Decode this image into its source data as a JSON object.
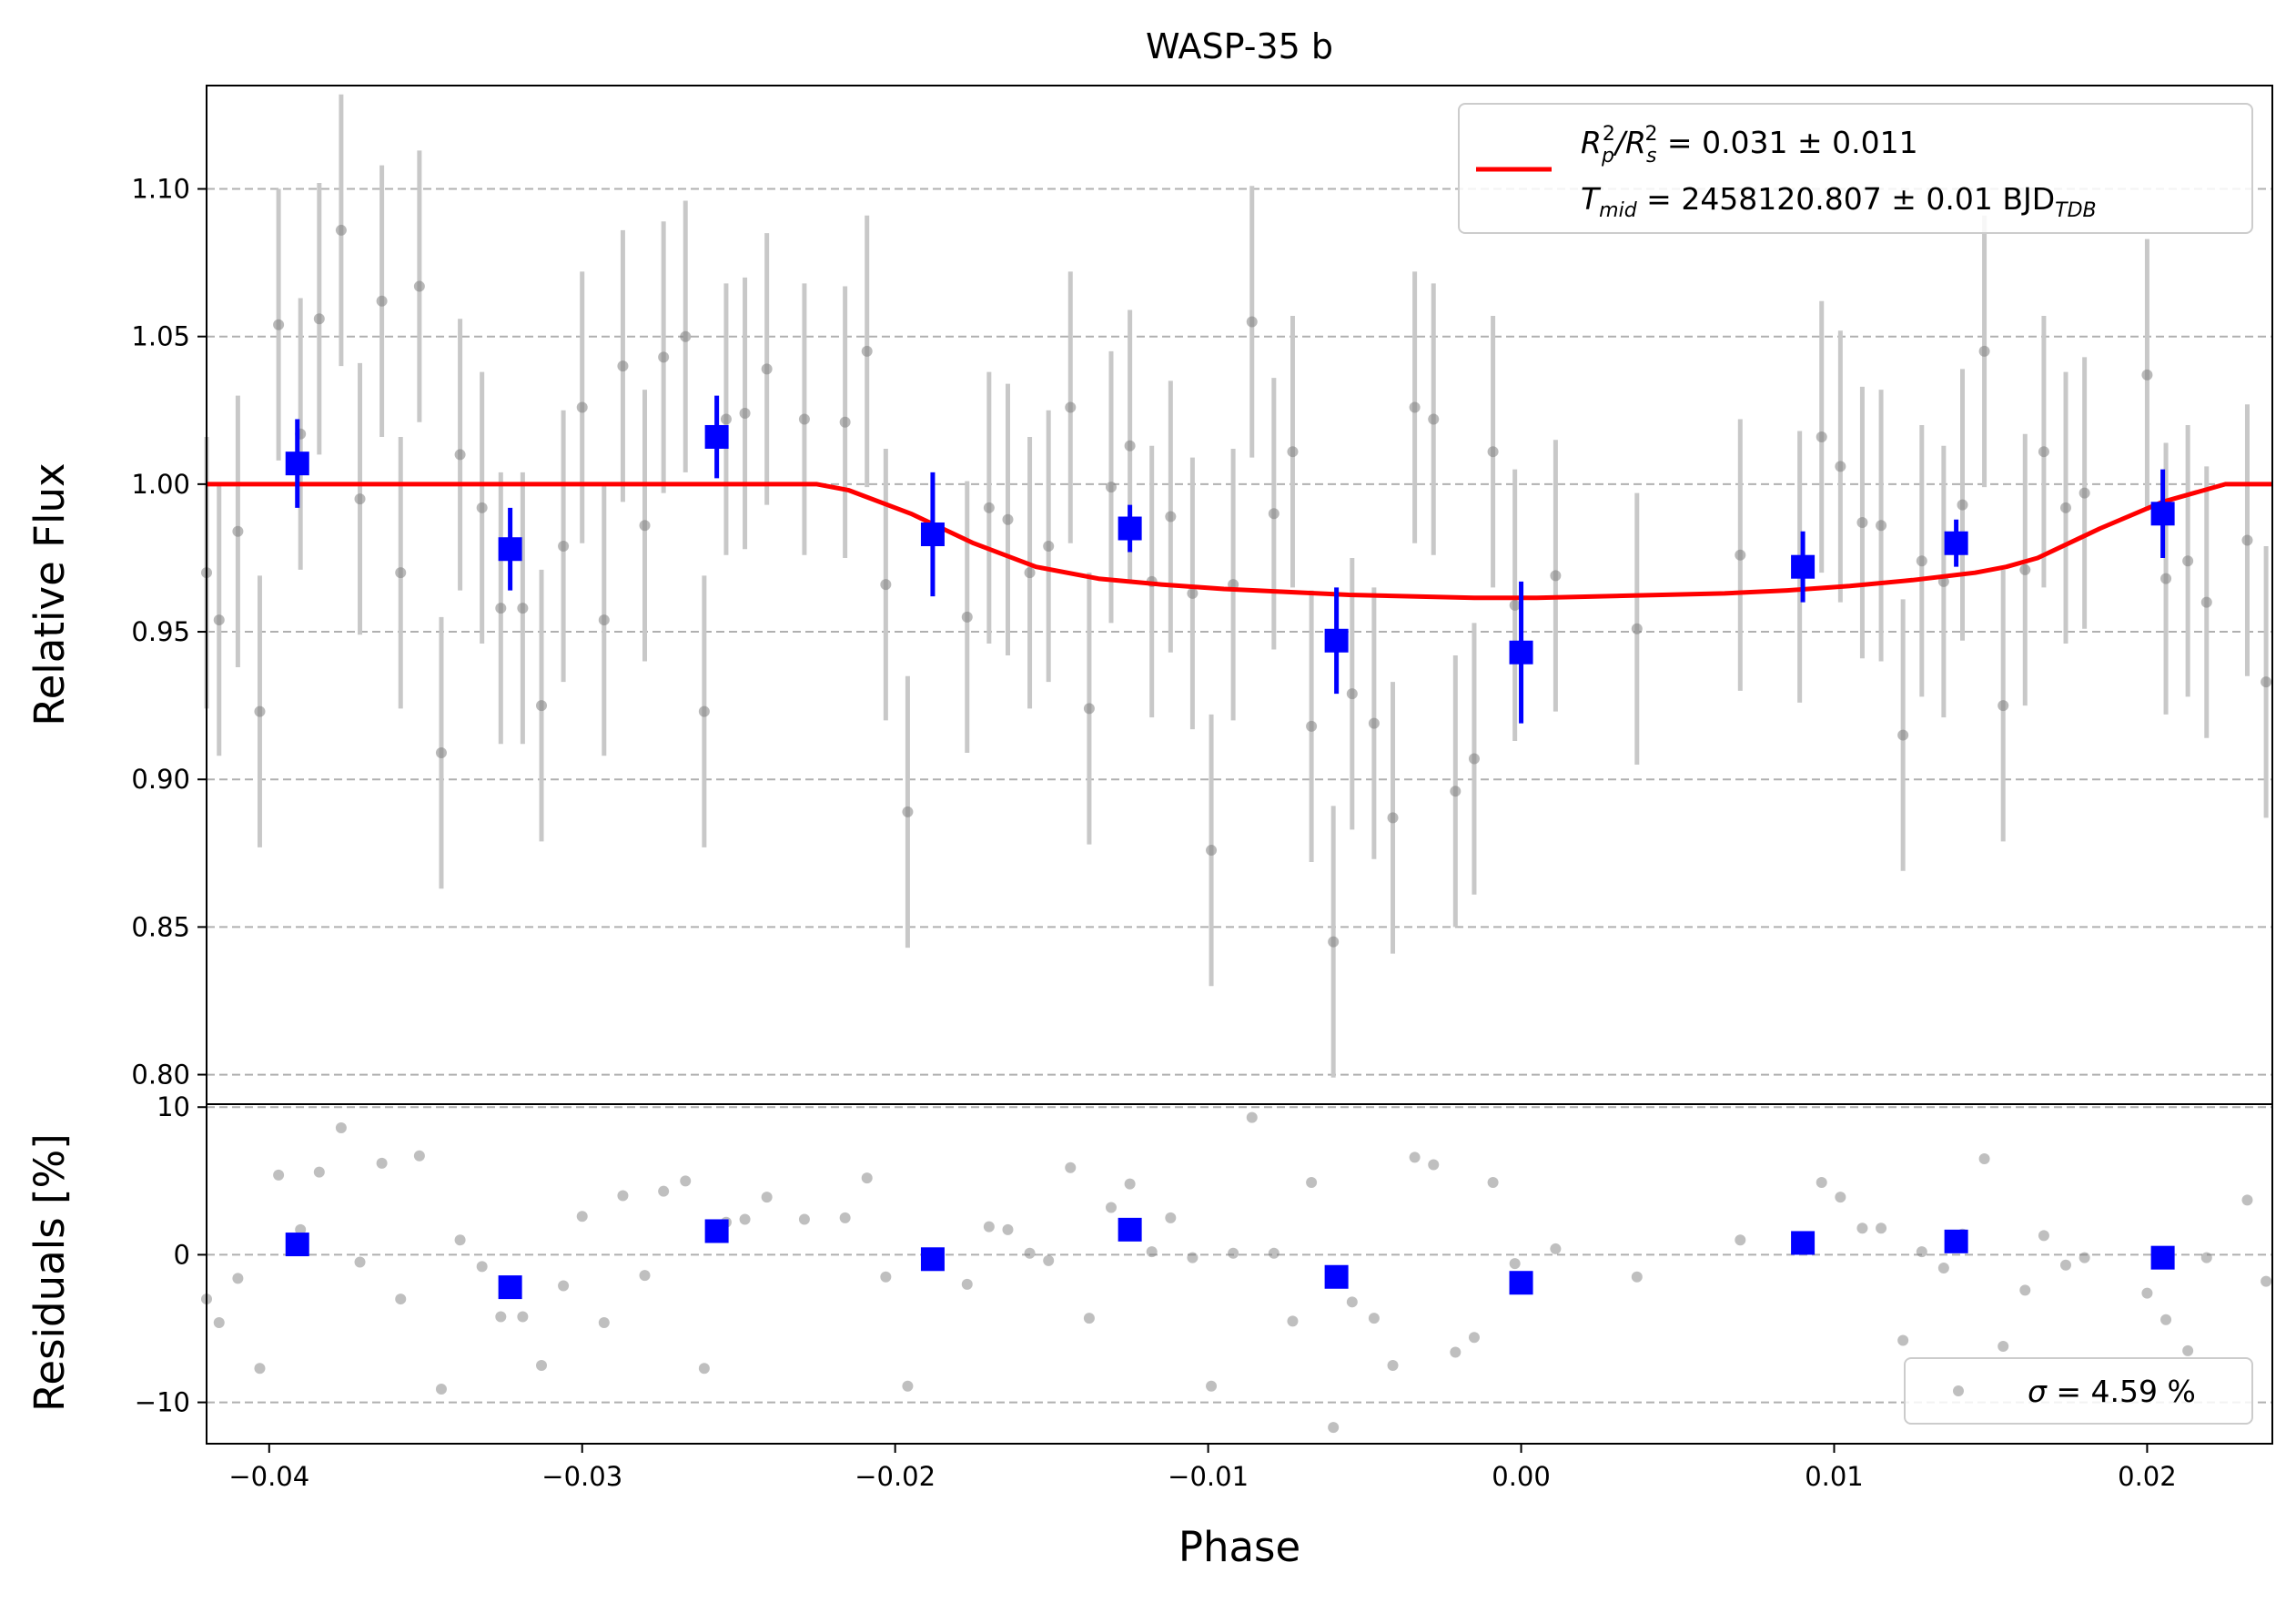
{
  "chart_data": [
    {
      "type": "scatter",
      "panel": "main",
      "title": "WASP-35 b",
      "ylabel": "Relative Flux",
      "xlim": [
        -0.042,
        0.024
      ],
      "ylim": [
        0.79,
        1.135
      ],
      "yticks": [
        0.8,
        0.85,
        0.9,
        0.95,
        1.0,
        1.05,
        1.1
      ],
      "ytick_labels": [
        "0.80",
        "0.85",
        "0.90",
        "0.95",
        "1.00",
        "1.05",
        "1.10"
      ],
      "grid": "horizontal dashed",
      "legend_position": "top-right",
      "colors": {
        "raw": "#808080",
        "raw_err": "#c8c8c8",
        "binned": "#0000ff",
        "model": "#ff0000",
        "grid": "#b0b0b0"
      },
      "legend": {
        "line1": {
          "main": "R",
          "sub1": "p",
          "sup1": "2",
          "mid": "/R",
          "sub2": "s",
          "sup2": "2",
          "rest": " = 0.031 ± 0.011"
        },
        "line2": {
          "main": "T",
          "sub1": "mid",
          "rest": " = 2458120.807 ± 0.01 BJD",
          "sub2": "TDB"
        }
      },
      "series": [
        {
          "name": "raw",
          "kind": "points_with_error",
          "err": 0.046,
          "x": [
            -0.042,
            -0.0416,
            -0.041,
            -0.0403,
            -0.0397,
            -0.039,
            -0.0384,
            -0.0377,
            -0.0371,
            -0.0364,
            -0.0358,
            -0.0352,
            -0.0345,
            -0.0339,
            -0.0332,
            -0.0326,
            -0.0319,
            -0.0313,
            -0.0306,
            -0.03,
            -0.0293,
            -0.0287,
            -0.028,
            -0.0274,
            -0.0267,
            -0.0261,
            -0.0254,
            -0.0248,
            -0.0241,
            -0.0229,
            -0.0216,
            -0.0209,
            -0.0203,
            -0.0196,
            -0.0177,
            -0.017,
            -0.0164,
            -0.0157,
            -0.0151,
            -0.0144,
            -0.0138,
            -0.0131,
            -0.0125,
            -0.0118,
            -0.0112,
            -0.0105,
            -0.0099,
            -0.0092,
            -0.0086,
            -0.0079,
            -0.0073,
            -0.0067,
            -0.006,
            -0.0054,
            -0.0047,
            -0.0041,
            -0.0034,
            -0.0028,
            -0.0021,
            -0.0015,
            -0.0009,
            -0.0002,
            0.0011,
            0.0037,
            0.007,
            0.0089,
            0.0096,
            0.0102,
            0.0109,
            0.0115,
            0.0122,
            0.0128,
            0.0135,
            0.0141,
            0.0148,
            0.0154,
            0.0161,
            0.0167,
            0.0174,
            0.018,
            0.02,
            0.0206,
            0.0213,
            0.0219,
            0.0232,
            0.0238
          ],
          "y": [
            0.97,
            0.954,
            0.984,
            0.923,
            1.054,
            1.017,
            1.056,
            1.086,
            0.995,
            1.062,
            0.97,
            1.067,
            0.909,
            1.01,
            0.992,
            0.958,
            0.958,
            0.925,
            0.979,
            1.026,
            0.954,
            1.04,
            0.986,
            1.043,
            1.05,
            0.923,
            1.022,
            1.024,
            1.039,
            1.022,
            1.021,
            1.045,
            0.966,
            0.889,
            0.955,
            0.992,
            0.988,
            0.97,
            0.979,
            1.026,
            0.924,
            0.999,
            1.013,
            0.967,
            0.989,
            0.963,
            0.876,
            0.966,
            1.055,
            0.99,
            1.011,
            0.918,
            0.845,
            0.929,
            0.919,
            0.887,
            1.026,
            1.022,
            0.896,
            0.907,
            1.011,
            0.959,
            0.969,
            0.951,
            0.976,
            0.972,
            1.016,
            1.006,
            0.987,
            0.986,
            0.915,
            0.974,
            0.967,
            0.993,
            1.045,
            0.925,
            0.971,
            1.011,
            0.992,
            0.997,
            1.037,
            0.968,
            0.974,
            0.96,
            0.981,
            0.933
          ]
        },
        {
          "name": "binned",
          "kind": "squares_with_error",
          "x": [
            -0.0391,
            -0.0323,
            -0.0257,
            -0.0188,
            -0.0125,
            -0.0059,
            0.0,
            0.009,
            0.0139,
            0.0205
          ],
          "y": [
            1.007,
            0.978,
            1.016,
            0.983,
            0.985,
            0.947,
            0.943,
            0.972,
            0.98,
            0.99
          ],
          "err": [
            0.015,
            0.014,
            0.014,
            0.021,
            0.008,
            0.018,
            0.024,
            0.012,
            0.008,
            0.015
          ]
        },
        {
          "name": "model",
          "kind": "line",
          "x": [
            -0.042,
            -0.0225,
            -0.0215,
            -0.0195,
            -0.0175,
            -0.0155,
            -0.0135,
            -0.0115,
            -0.0095,
            -0.0075,
            -0.0055,
            -0.0035,
            -0.0015,
            0.0005,
            0.0025,
            0.0045,
            0.0065,
            0.0085,
            0.0105,
            0.0125,
            0.0145,
            0.0155,
            0.0165,
            0.0185,
            0.0205,
            0.0225,
            0.024
          ],
          "y": [
            1.0,
            1.0,
            0.998,
            0.99,
            0.98,
            0.972,
            0.968,
            0.966,
            0.9645,
            0.9635,
            0.9625,
            0.962,
            0.9615,
            0.9615,
            0.962,
            0.9625,
            0.963,
            0.964,
            0.9655,
            0.9675,
            0.97,
            0.972,
            0.975,
            0.985,
            0.994,
            1.0,
            1.0
          ]
        }
      ]
    },
    {
      "type": "scatter",
      "panel": "residuals",
      "xlabel": "Phase",
      "ylabel": "Residuals [%]",
      "xlim": [
        -0.042,
        0.024
      ],
      "ylim": [
        -12.8,
        10.2
      ],
      "xticks": [
        -0.04,
        -0.03,
        -0.02,
        -0.01,
        0.0,
        0.01,
        0.02
      ],
      "xtick_labels": [
        "−0.04",
        "−0.03",
        "−0.02",
        "−0.01",
        "0.00",
        "0.01",
        "0.02"
      ],
      "yticks": [
        -10,
        0,
        10
      ],
      "ytick_labels": [
        "−10",
        "0",
        "10"
      ],
      "grid": "horizontal dashed",
      "legend_position": "bottom-right",
      "legend": {
        "sigma_symbol": "σ",
        "sigma_rest": " = 4.59 %"
      },
      "series": [
        {
          "name": "raw_residuals",
          "kind": "points",
          "x": [
            -0.042,
            -0.0416,
            -0.041,
            -0.0403,
            -0.0397,
            -0.039,
            -0.0384,
            -0.0377,
            -0.0371,
            -0.0364,
            -0.0358,
            -0.0352,
            -0.0345,
            -0.0339,
            -0.0332,
            -0.0326,
            -0.0319,
            -0.0313,
            -0.0306,
            -0.03,
            -0.0293,
            -0.0287,
            -0.028,
            -0.0274,
            -0.0267,
            -0.0261,
            -0.0254,
            -0.0248,
            -0.0241,
            -0.0229,
            -0.0216,
            -0.0209,
            -0.0203,
            -0.0196,
            -0.0177,
            -0.017,
            -0.0164,
            -0.0157,
            -0.0151,
            -0.0144,
            -0.0138,
            -0.0131,
            -0.0125,
            -0.0118,
            -0.0112,
            -0.0105,
            -0.0099,
            -0.0092,
            -0.0086,
            -0.0079,
            -0.0073,
            -0.0067,
            -0.006,
            -0.0054,
            -0.0047,
            -0.0041,
            -0.0034,
            -0.0028,
            -0.0021,
            -0.0015,
            -0.0009,
            -0.0002,
            0.0011,
            0.0037,
            0.007,
            0.0089,
            0.0096,
            0.0102,
            0.0109,
            0.0115,
            0.0122,
            0.0128,
            0.0135,
            0.0141,
            0.0148,
            0.0154,
            0.0161,
            0.0167,
            0.0174,
            0.018,
            0.02,
            0.0206,
            0.0213,
            0.0219,
            0.0232,
            0.0238
          ],
          "y": [
            -3.0,
            -4.6,
            -1.6,
            -7.7,
            5.4,
            1.7,
            5.6,
            8.6,
            -0.5,
            6.2,
            -3.0,
            6.7,
            -9.1,
            1.0,
            -0.8,
            -4.2,
            -4.2,
            -7.5,
            -2.1,
            2.6,
            -4.6,
            4.0,
            -1.4,
            4.3,
            5.0,
            -7.7,
            2.2,
            2.4,
            3.9,
            2.4,
            2.5,
            5.2,
            -1.5,
            -8.9,
            -2.0,
            1.9,
            1.7,
            0.1,
            -0.4,
            5.9,
            -4.3,
            3.2,
            4.8,
            0.2,
            2.5,
            -0.2,
            -8.9,
            0.1,
            9.3,
            0.1,
            -4.5,
            4.9,
            -11.7,
            -3.2,
            -4.3,
            -7.5,
            6.6,
            6.1,
            -6.6,
            -5.6,
            4.9,
            -0.6,
            0.4,
            -1.5,
            1.0,
            0.6,
            4.9,
            3.9,
            1.8,
            1.8,
            -5.8,
            0.2,
            -0.9,
            1.4,
            6.5,
            -6.2,
            -2.4,
            1.3,
            -0.7,
            -0.2,
            -2.6,
            -4.4,
            -6.5,
            -0.2,
            3.7,
            -1.8
          ]
        },
        {
          "name": "binned_residuals",
          "kind": "squares",
          "x": [
            -0.0391,
            -0.0323,
            -0.0257,
            -0.0188,
            -0.0125,
            -0.0059,
            0.0,
            0.009,
            0.0139,
            0.0205
          ],
          "y": [
            0.7,
            -2.2,
            1.6,
            -0.3,
            1.7,
            -1.5,
            -1.9,
            0.8,
            0.9,
            -0.2
          ]
        }
      ]
    }
  ]
}
